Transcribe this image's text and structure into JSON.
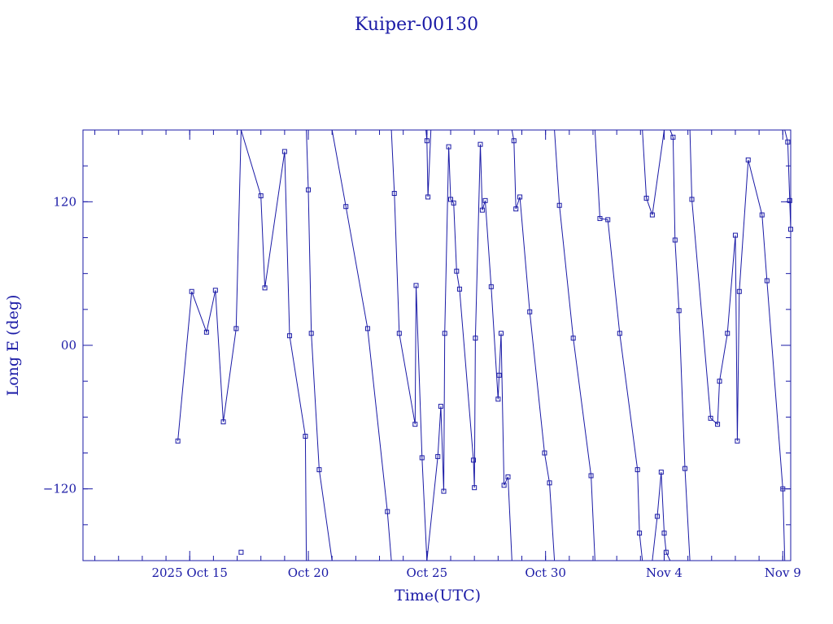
{
  "chart_data": {
    "type": "line",
    "title": "Kuiper-00130",
    "xlabel": "Time(UTC)",
    "ylabel": "Long E (deg)",
    "x_tick_labels": [
      {
        "date": "2025-10-15",
        "label": "2025 Oct 15"
      },
      {
        "date": "2025-10-20",
        "label": "Oct 20"
      },
      {
        "date": "2025-10-25",
        "label": "Oct 25"
      },
      {
        "date": "2025-10-30",
        "label": "Oct 30"
      },
      {
        "date": "2025-11-04",
        "label": "Nov  4"
      },
      {
        "date": "2025-11-09",
        "label": "Nov  9"
      }
    ],
    "y_tick_labels": [
      {
        "value": -120,
        "label": "−120"
      },
      {
        "value": 0,
        "label": "00"
      },
      {
        "value": 120,
        "label": "120"
      }
    ],
    "xlim": [
      "2025-10-10T12:00",
      "2025-11-09T08:00"
    ],
    "ylim": [
      -180,
      180
    ],
    "line_color": "#1a1aa6",
    "series": [
      {
        "points": [
          [
            "2025-10-14T12:00",
            -80
          ],
          [
            "2025-10-15T02:00",
            45
          ],
          [
            "2025-10-15T17:00",
            11
          ],
          [
            "2025-10-16T02:00",
            46
          ],
          [
            "2025-10-16T10:00",
            -64
          ],
          [
            "2025-10-16T23:00",
            14
          ],
          [
            "2025-10-17T04:00",
            180
          ]
        ]
      },
      {
        "points": [
          [
            "2025-10-17T04:00",
            -173
          ]
        ]
      },
      {
        "points": [
          [
            "2025-10-17T04:00",
            180
          ],
          [
            "2025-10-18T00:00",
            125
          ],
          [
            "2025-10-18T04:00",
            48
          ],
          [
            "2025-10-19T00:00",
            162
          ],
          [
            "2025-10-19T05:00",
            8
          ],
          [
            "2025-10-19T21:00",
            -76
          ],
          [
            "2025-10-19T22:00",
            -180
          ]
        ]
      },
      {
        "points": [
          [
            "2025-10-19T22:00",
            180
          ],
          [
            "2025-10-20T00:00",
            130
          ],
          [
            "2025-10-20T03:00",
            10
          ],
          [
            "2025-10-20T11:00",
            -104
          ],
          [
            "2025-10-21T00:00",
            -180
          ]
        ]
      },
      {
        "points": [
          [
            "2025-10-21T00:00",
            180
          ],
          [
            "2025-10-21T14:00",
            116
          ],
          [
            "2025-10-22T12:00",
            14
          ],
          [
            "2025-10-23T08:00",
            -139
          ],
          [
            "2025-10-23T12:00",
            -180
          ]
        ]
      },
      {
        "points": [
          [
            "2025-10-23T12:00",
            180
          ],
          [
            "2025-10-23T15:00",
            127
          ],
          [
            "2025-10-23T20:00",
            10
          ],
          [
            "2025-10-24T12:00",
            -66
          ],
          [
            "2025-10-24T13:00",
            50
          ],
          [
            "2025-10-24T19:00",
            -94
          ],
          [
            "2025-10-25T00:00",
            -180
          ]
        ]
      },
      {
        "points": [
          [
            "2025-10-24T23:00",
            180
          ],
          [
            "2025-10-25T00:00",
            171
          ],
          [
            "2025-10-25T01:00",
            124
          ],
          [
            "2025-10-25T04:00",
            180
          ]
        ]
      },
      {
        "points": [
          [
            "2025-10-25T00:00",
            -180
          ],
          [
            "2025-10-25T11:00",
            -93
          ],
          [
            "2025-10-25T14:00",
            -51
          ],
          [
            "2025-10-25T17:00",
            -122
          ],
          [
            "2025-10-25T18:00",
            10
          ],
          [
            "2025-10-25T22:00",
            166
          ],
          [
            "2025-10-26T00:00",
            122
          ],
          [
            "2025-10-26T03:00",
            119
          ],
          [
            "2025-10-26T06:00",
            62
          ],
          [
            "2025-10-26T09:00",
            47
          ],
          [
            "2025-10-26T23:00",
            -96
          ],
          [
            "2025-10-27T00:00",
            -119
          ],
          [
            "2025-10-27T01:00",
            6
          ],
          [
            "2025-10-27T06:00",
            168
          ],
          [
            "2025-10-27T08:00",
            113
          ],
          [
            "2025-10-27T11:00",
            121
          ],
          [
            "2025-10-27T17:00",
            49
          ],
          [
            "2025-10-28T00:00",
            -45
          ],
          [
            "2025-10-28T01:00",
            -25
          ],
          [
            "2025-10-28T03:00",
            10
          ],
          [
            "2025-10-28T06:00",
            -117
          ],
          [
            "2025-10-28T10:00",
            -110
          ],
          [
            "2025-10-28T14:00",
            -180
          ]
        ]
      },
      {
        "points": [
          [
            "2025-10-28T14:00",
            180
          ],
          [
            "2025-10-28T16:00",
            171
          ],
          [
            "2025-10-28T18:00",
            114
          ],
          [
            "2025-10-28T22:00",
            124
          ],
          [
            "2025-10-29T08:00",
            28
          ],
          [
            "2025-10-29T23:00",
            -90
          ],
          [
            "2025-10-30T04:00",
            -115
          ],
          [
            "2025-10-30T09:00",
            -180
          ]
        ]
      },
      {
        "points": [
          [
            "2025-10-30T09:00",
            180
          ],
          [
            "2025-10-30T14:00",
            117
          ],
          [
            "2025-10-31T04:00",
            6
          ],
          [
            "2025-10-31T22:00",
            -109
          ],
          [
            "2025-11-01T02:00",
            -180
          ]
        ]
      },
      {
        "points": [
          [
            "2025-11-01T02:00",
            180
          ],
          [
            "2025-11-01T07:00",
            106
          ],
          [
            "2025-11-01T15:00",
            105
          ],
          [
            "2025-11-02T03:00",
            10
          ],
          [
            "2025-11-02T21:00",
            -104
          ],
          [
            "2025-11-02T23:00",
            -157
          ],
          [
            "2025-11-03T02:00",
            -180
          ]
        ]
      },
      {
        "points": [
          [
            "2025-11-03T02:00",
            180
          ],
          [
            "2025-11-03T06:00",
            123
          ],
          [
            "2025-11-03T12:00",
            109
          ],
          [
            "2025-11-04T00:00",
            180
          ]
        ]
      },
      {
        "points": [
          [
            "2025-11-03T12:00",
            -180
          ],
          [
            "2025-11-03T17:00",
            -143
          ],
          [
            "2025-11-03T21:00",
            -106
          ],
          [
            "2025-11-04T00:00",
            -157
          ],
          [
            "2025-11-04T02:00",
            -173
          ],
          [
            "2025-11-04T06:00",
            -180
          ]
        ]
      },
      {
        "points": [
          [
            "2025-11-04T06:00",
            180
          ],
          [
            "2025-11-04T09:00",
            174
          ],
          [
            "2025-11-04T11:00",
            88
          ],
          [
            "2025-11-04T15:00",
            29
          ],
          [
            "2025-11-04T21:00",
            -103
          ],
          [
            "2025-11-05T02:00",
            -180
          ]
        ]
      },
      {
        "points": [
          [
            "2025-11-05T02:00",
            180
          ],
          [
            "2025-11-05T04:00",
            122
          ],
          [
            "2025-11-05T23:00",
            -61
          ],
          [
            "2025-11-06T06:00",
            -66
          ],
          [
            "2025-11-06T08:00",
            -30
          ],
          [
            "2025-11-06T16:00",
            10
          ],
          [
            "2025-11-07T00:00",
            92
          ],
          [
            "2025-11-07T02:00",
            -80
          ],
          [
            "2025-11-07T04:00",
            45
          ],
          [
            "2025-11-07T13:00",
            155
          ],
          [
            "2025-11-08T03:00",
            109
          ],
          [
            "2025-11-08T08:00",
            54
          ],
          [
            "2025-11-09T00:00",
            -120
          ],
          [
            "2025-11-09T02:00",
            -180
          ]
        ]
      },
      {
        "points": [
          [
            "2025-11-09T02:00",
            180
          ],
          [
            "2025-11-09T05:00",
            170
          ],
          [
            "2025-11-09T07:00",
            121
          ],
          [
            "2025-11-09T08:00",
            97
          ]
        ]
      }
    ],
    "extra_segment_note": ""
  }
}
